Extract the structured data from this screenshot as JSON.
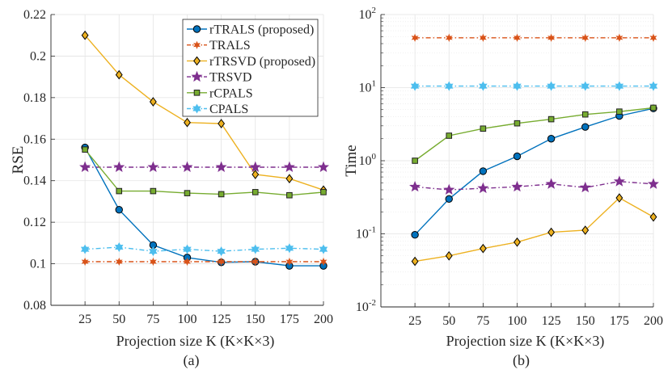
{
  "chart_data": [
    {
      "type": "line",
      "subcaption": "(a)",
      "xlabel": "Projection size K (K×K×3)",
      "ylabel": "RSE",
      "x": [
        25,
        50,
        75,
        100,
        125,
        150,
        175,
        200
      ],
      "xlim": [
        0,
        200
      ],
      "ylim": [
        0.08,
        0.22
      ],
      "yscale": "linear",
      "yticks": [
        "0.08",
        "0.1",
        "0.12",
        "0.14",
        "0.16",
        "0.18",
        "0.2",
        "0.22"
      ],
      "grid": true,
      "legend": "top-right",
      "series": [
        {
          "name": "rTRALS (proposed)",
          "color": "#0072BD",
          "marker": "circle",
          "line": "solid",
          "values": [
            0.156,
            0.126,
            0.109,
            0.103,
            0.1007,
            0.101,
            0.099,
            0.099
          ]
        },
        {
          "name": "TRALS",
          "color": "#D95319",
          "marker": "asterisk",
          "line": "dashdot",
          "values": [
            0.101,
            0.101,
            0.101,
            0.101,
            0.101,
            0.101,
            0.101,
            0.101
          ]
        },
        {
          "name": "rTRSVD (proposed)",
          "color": "#EDB120",
          "marker": "diamond",
          "line": "solid",
          "values": [
            0.21,
            0.191,
            0.178,
            0.168,
            0.1675,
            0.143,
            0.141,
            0.1355
          ]
        },
        {
          "name": "TRSVD",
          "color": "#7E2F8E",
          "marker": "pentagram",
          "line": "dashdot",
          "values": [
            0.1465,
            0.1465,
            0.1465,
            0.1465,
            0.1465,
            0.1465,
            0.1465,
            0.1465
          ]
        },
        {
          "name": "rCPALS",
          "color": "#77AC30",
          "marker": "square",
          "line": "solid",
          "values": [
            0.155,
            0.135,
            0.135,
            0.134,
            0.1335,
            0.1345,
            0.133,
            0.1345
          ]
        },
        {
          "name": "CPALS",
          "color": "#4DBEEE",
          "marker": "hexagram",
          "line": "dashdot",
          "values": [
            0.107,
            0.108,
            0.106,
            0.107,
            0.106,
            0.107,
            0.1075,
            0.107
          ]
        }
      ]
    },
    {
      "type": "line",
      "subcaption": "(b)",
      "xlabel": "Projection size K (K×K×3)",
      "ylabel": "Time",
      "x": [
        25,
        50,
        75,
        100,
        125,
        150,
        175,
        200
      ],
      "xlim": [
        0,
        200
      ],
      "ylim": [
        0.01,
        100
      ],
      "yscale": "log",
      "yticks": [
        "-2",
        "-1",
        "0",
        "1",
        "2"
      ],
      "ytick_base": "10",
      "grid": true,
      "series": [
        {
          "color": "#0072BD",
          "marker": "circle",
          "line": "solid",
          "values": [
            0.097,
            0.3,
            0.72,
            1.15,
            2.0,
            2.9,
            4.1,
            5.2
          ]
        },
        {
          "color": "#D95319",
          "marker": "asterisk",
          "line": "dashdot",
          "values": [
            48,
            48,
            48,
            48,
            48,
            48,
            48,
            48
          ]
        },
        {
          "color": "#EDB120",
          "marker": "diamond",
          "line": "solid",
          "values": [
            0.042,
            0.05,
            0.063,
            0.077,
            0.105,
            0.112,
            0.31,
            0.17
          ]
        },
        {
          "color": "#7E2F8E",
          "marker": "pentagram",
          "line": "dashdot",
          "values": [
            0.44,
            0.4,
            0.42,
            0.44,
            0.48,
            0.43,
            0.52,
            0.48
          ]
        },
        {
          "color": "#77AC30",
          "marker": "square",
          "line": "solid",
          "values": [
            1.0,
            2.2,
            2.75,
            3.25,
            3.7,
            4.3,
            4.7,
            5.3
          ]
        },
        {
          "color": "#4DBEEE",
          "marker": "hexagram",
          "line": "dashdot",
          "values": [
            10.5,
            10.5,
            10.5,
            10.5,
            10.5,
            10.5,
            10.5,
            10.5
          ]
        }
      ]
    }
  ]
}
